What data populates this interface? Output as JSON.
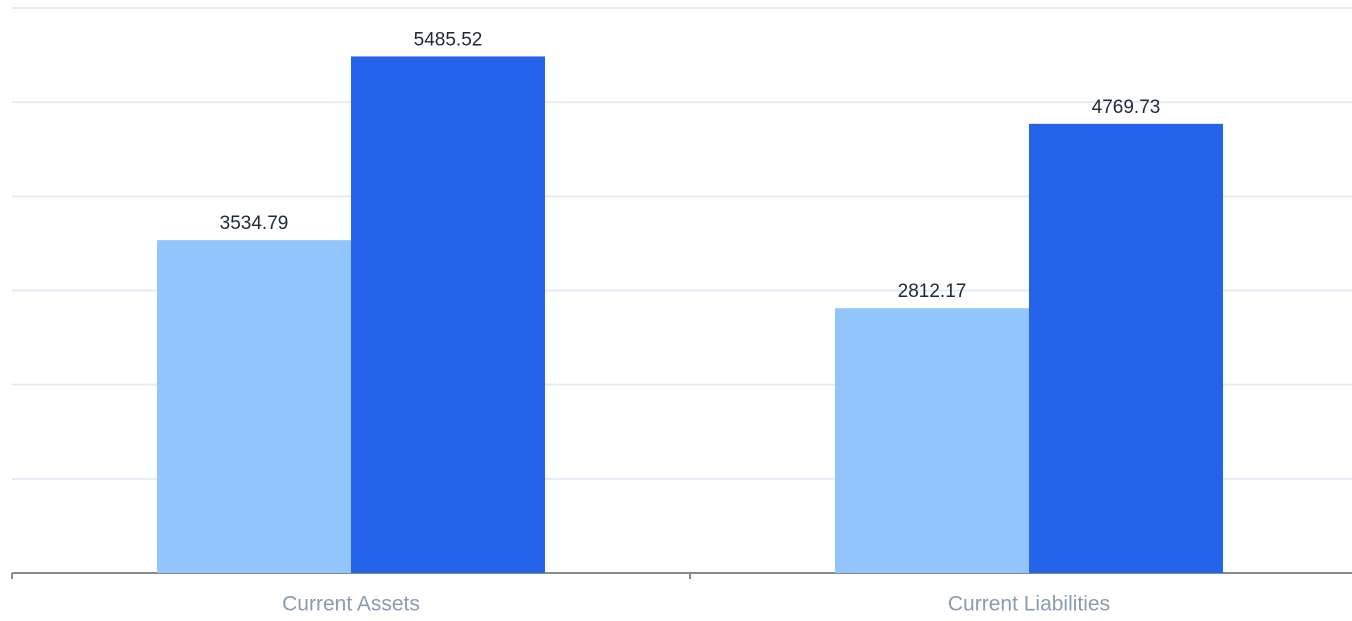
{
  "chart_data": {
    "type": "bar",
    "categories": [
      "Current Assets",
      "Current Liabilities"
    ],
    "series": [
      {
        "color": "#93c5fd",
        "values": [
          3534.79,
          2812.17
        ]
      },
      {
        "color": "#2563eb",
        "values": [
          5485.52,
          4769.73
        ]
      }
    ],
    "ylim": [
      0,
      6000
    ],
    "yticks": [
      0,
      1000,
      2000,
      3000,
      4000,
      5000,
      6000
    ],
    "grid": true
  }
}
